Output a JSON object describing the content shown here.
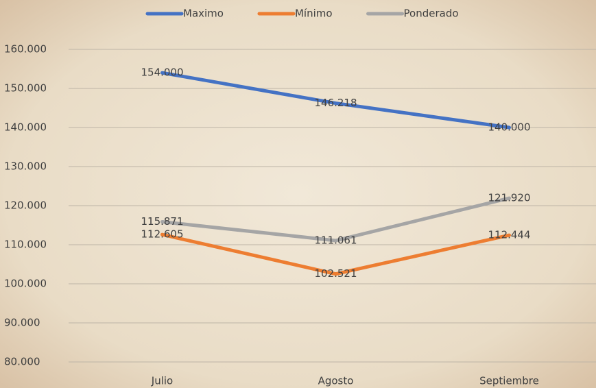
{
  "chart_data": {
    "type": "line",
    "categories": [
      "Julio",
      "Agosto",
      "Septiembre"
    ],
    "series": [
      {
        "name": "Maximo",
        "color": "#4472c4",
        "values": [
          154000,
          146218,
          140000
        ],
        "value_labels": [
          "154.000",
          "146.218",
          "140.000"
        ]
      },
      {
        "name": "Mínimo",
        "color": "#ed7d31",
        "values": [
          112605,
          102521,
          112444
        ],
        "value_labels": [
          "112.605",
          "102.521",
          "112.444"
        ]
      },
      {
        "name": "Ponderado",
        "color": "#a5a5a5",
        "values": [
          115871,
          111061,
          121920
        ],
        "value_labels": [
          "115.871",
          "111.061",
          "121.920"
        ]
      }
    ],
    "ylim": [
      80000,
      160000
    ],
    "yticks": [
      {
        "value": 80000,
        "label": "80.000"
      },
      {
        "value": 90000,
        "label": "90.000"
      },
      {
        "value": 100000,
        "label": "100.000"
      },
      {
        "value": 110000,
        "label": "110.000"
      },
      {
        "value": 120000,
        "label": "120.000"
      },
      {
        "value": 130000,
        "label": "130.000"
      },
      {
        "value": 140000,
        "label": "140.000"
      },
      {
        "value": 150000,
        "label": "150.000"
      },
      {
        "value": 160000,
        "label": "160.000"
      }
    ],
    "grid": true,
    "legend": "top"
  }
}
